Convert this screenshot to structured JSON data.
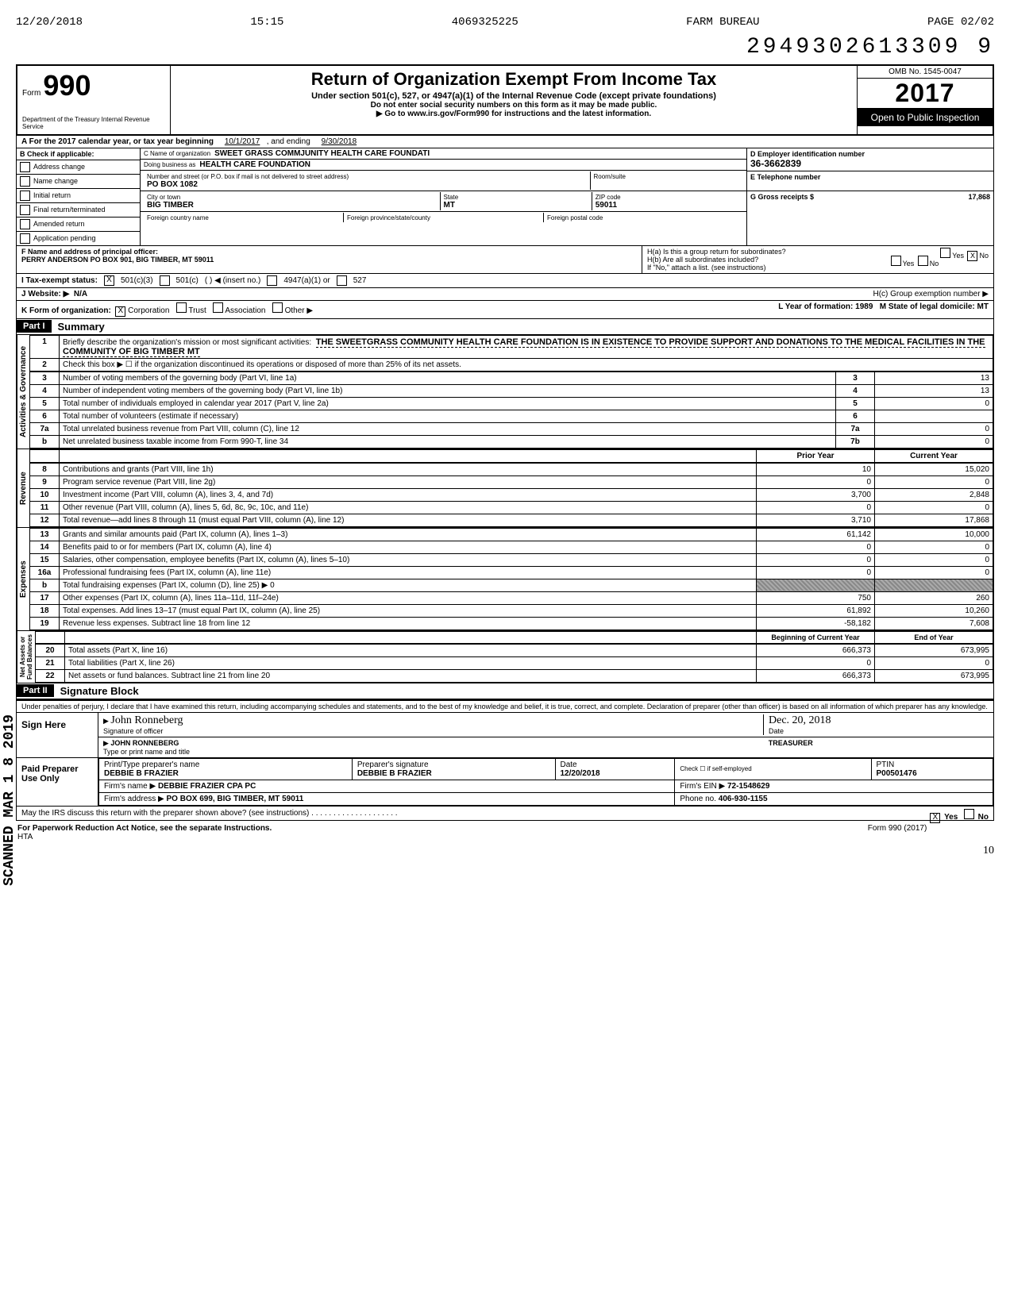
{
  "fax": {
    "date": "12/20/2018",
    "time": "15:15",
    "number": "4069325225",
    "name": "FARM BUREAU",
    "page": "PAGE  02/02"
  },
  "doc_id": "2949302613309  9",
  "header": {
    "form_word": "Form",
    "form_no": "990",
    "title": "Return of Organization Exempt From Income Tax",
    "sub1": "Under section 501(c), 527, or 4947(a)(1) of the Internal Revenue Code (except private foundations)",
    "sub2": "Do not enter social security numbers on this form as it may be made public.",
    "sub3": "▶ Go to www.irs.gov/Form990 for instructions and the latest information.",
    "dept": "Department of the Treasury\nInternal Revenue Service",
    "omb": "OMB No. 1545-0047",
    "year": "2017",
    "open": "Open to Public\nInspection"
  },
  "row_a": {
    "text_l": "A   For the 2017 calendar year, or tax year beginning",
    "begin": "10/1/2017",
    "mid": ", and ending",
    "end": "9/30/2018"
  },
  "checks": {
    "header": "B  Check if applicable:",
    "items": [
      "Address change",
      "Name change",
      "Initial return",
      "Final return/terminated",
      "Amended return",
      "Application pending"
    ]
  },
  "org": {
    "c_lbl": "C  Name of organization",
    "c_val": "SWEET GRASS COMMJUNITY HEALTH CARE FOUNDATI",
    "dba_lbl": "Doing business as",
    "dba_val": "HEALTH CARE FOUNDATION",
    "street_lbl": "Number and street (or P.O. box if mail is not delivered to street address)",
    "street_val": "PO BOX 1082",
    "room_lbl": "Room/suite",
    "city_lbl": "City or town",
    "city_val": "BIG TIMBER",
    "state_lbl": "State",
    "state_val": "MT",
    "zip_lbl": "ZIP code",
    "zip_val": "59011",
    "fc_lbl": "Foreign country name",
    "fp_lbl": "Foreign province/state/county",
    "fz_lbl": "Foreign postal code"
  },
  "right": {
    "d_lbl": "D  Employer identification number",
    "d_val": "36-3662839",
    "e_lbl": "E  Telephone number",
    "g_lbl": "G  Gross receipts $",
    "g_val": "17,868"
  },
  "f": {
    "lbl": "F  Name and address of principal officer:",
    "val": "PERRY ANDERSON PO BOX 901, BIG TIMBER, MT  59011",
    "ha": "H(a) Is this a group return for subordinates?",
    "ha_yes": "Yes",
    "ha_no": "No",
    "ha_checked": "X",
    "hb": "H(b) Are all subordinates included?",
    "hb_yes": "Yes",
    "hb_no": "No",
    "hb_note": "If \"No,\" attach a list. (see instructions)"
  },
  "i": {
    "lbl": "I   Tax-exempt status:",
    "opt1": "501(c)(3)",
    "opt1_checked": "X",
    "opt2": "501(c)",
    "opt2_paren": "(          )  ◀ (insert no.)",
    "opt3": "4947(a)(1) or",
    "opt4": "527"
  },
  "j": {
    "lbl": "J  Website: ▶",
    "val": "N/A",
    "hc": "H(c) Group exemption number ▶"
  },
  "k": {
    "lbl": "K  Form of organization:",
    "corp": "Corporation",
    "corp_checked": "X",
    "trust": "Trust",
    "assoc": "Association",
    "other": "Other ▶",
    "l_lbl": "L Year of formation:",
    "l_val": "1989",
    "m_lbl": "M State of legal domicile:",
    "m_val": "MT"
  },
  "part1": {
    "hdr": "Part I",
    "title": "Summary",
    "line1_lbl": "Briefly describe the organization's mission or most significant activities:",
    "line1_val": "THE SWEETGRASS COMMUNITY HEALTH CARE FOUNDATION IS IN EXISTENCE TO PROVIDE SUPPORT AND DONATIONS TO THE MEDICAL FACILITIES IN THE COMMUNITY OF BIG TIMBER MT",
    "line2": "Check this box  ▶ ☐  if the organization discontinued its operations or disposed of more than 25% of its net assets.",
    "rows_gov": [
      {
        "n": "3",
        "t": "Number of voting members of the governing body (Part VI, line 1a)",
        "b": "3",
        "v": "13"
      },
      {
        "n": "4",
        "t": "Number of independent voting members of the governing body (Part VI, line 1b)",
        "b": "4",
        "v": "13"
      },
      {
        "n": "5",
        "t": "Total number of individuals employed in calendar year 2017 (Part V, line 2a)",
        "b": "5",
        "v": "0"
      },
      {
        "n": "6",
        "t": "Total number of volunteers (estimate if necessary)",
        "b": "6",
        "v": ""
      },
      {
        "n": "7a",
        "t": "Total unrelated business revenue from Part VIII, column (C), line 12",
        "b": "7a",
        "v": "0"
      },
      {
        "n": "b",
        "t": "Net unrelated business taxable income from Form 990-T, line 34",
        "b": "7b",
        "v": "0"
      }
    ],
    "col_prior": "Prior Year",
    "col_curr": "Current Year",
    "rows_rev": [
      {
        "n": "8",
        "t": "Contributions and grants (Part VIII, line 1h)",
        "p": "10",
        "c": "15,020"
      },
      {
        "n": "9",
        "t": "Program service revenue (Part VIII, line 2g)",
        "p": "0",
        "c": "0"
      },
      {
        "n": "10",
        "t": "Investment income (Part VIII, column (A), lines 3, 4, and 7d)",
        "p": "3,700",
        "c": "2,848"
      },
      {
        "n": "11",
        "t": "Other revenue (Part VIII, column (A), lines 5, 6d, 8c, 9c, 10c, and 11e)",
        "p": "0",
        "c": "0"
      },
      {
        "n": "12",
        "t": "Total revenue—add lines 8 through 11 (must equal Part VIII, column (A), line 12)",
        "p": "3,710",
        "c": "17,868"
      }
    ],
    "rows_exp": [
      {
        "n": "13",
        "t": "Grants and similar amounts paid (Part IX, column (A), lines 1–3)",
        "p": "61,142",
        "c": "10,000"
      },
      {
        "n": "14",
        "t": "Benefits paid to or for members (Part IX, column (A), line 4)",
        "p": "0",
        "c": "0"
      },
      {
        "n": "15",
        "t": "Salaries, other compensation, employee benefits (Part IX, column (A), lines 5–10)",
        "p": "0",
        "c": "0"
      },
      {
        "n": "16a",
        "t": "Professional fundraising fees (Part IX, column (A), line 11e)",
        "p": "0",
        "c": "0"
      },
      {
        "n": "b",
        "t": "Total fundraising expenses (Part IX, column (D), line 25)  ▶                  0",
        "p": "SHADE",
        "c": "SHADE"
      },
      {
        "n": "17",
        "t": "Other expenses (Part IX, column (A), lines 11a–11d, 11f–24e)",
        "p": "750",
        "c": "260"
      },
      {
        "n": "18",
        "t": "Total expenses. Add lines 13–17 (must equal Part IX, column (A), line 25)",
        "p": "61,892",
        "c": "10,260"
      },
      {
        "n": "19",
        "t": "Revenue less expenses. Subtract line 18 from line 12",
        "p": "-58,182",
        "c": "7,608"
      }
    ],
    "col_begin": "Beginning of Current Year",
    "col_end": "End of Year",
    "rows_net": [
      {
        "n": "20",
        "t": "Total assets (Part X, line 16)",
        "p": "666,373",
        "c": "673,995"
      },
      {
        "n": "21",
        "t": "Total liabilities (Part X, line 26)",
        "p": "0",
        "c": "0"
      },
      {
        "n": "22",
        "t": "Net assets or fund balances. Subtract line 21 from line 20",
        "p": "666,373",
        "c": "673,995"
      }
    ]
  },
  "part2": {
    "hdr": "Part II",
    "title": "Signature Block",
    "penalty": "Under penalties of perjury, I declare that I have examined this return, including accompanying schedules and statements, and to the best of my knowledge and belief, it is true, correct, and complete. Declaration of preparer (other than officer) is based on all information of which preparer has any knowledge.",
    "sign_here": "Sign Here",
    "sig_lbl": "Signature of officer",
    "sig_hand": "John Ronneberg",
    "date_lbl": "Date",
    "date_hand": "Dec. 20, 2018",
    "name_lbl": "Type or print name and title",
    "name_val": "JOHN RONNEBERG",
    "title_val": "TREASURER",
    "paid": "Paid Preparer Use Only",
    "prep_name_lbl": "Print/Type preparer's name",
    "prep_name": "DEBBIE B FRAZIER",
    "prep_sig_lbl": "Preparer's signature",
    "prep_sig": "DEBBIE B FRAZIER",
    "prep_date_lbl": "Date",
    "prep_date": "12/20/2018",
    "check_lbl": "Check ☐ if self-employed",
    "ptin_lbl": "PTIN",
    "ptin": "P00501476",
    "firm_lbl": "Firm's name   ▶",
    "firm": "DEBBIE FRAZIER CPA PC",
    "ein_lbl": "Firm's EIN ▶",
    "ein": "72-1548629",
    "addr_lbl": "Firm's address ▶",
    "addr": "PO BOX 699, BIG TIMBER, MT 59011",
    "phone_lbl": "Phone no.",
    "phone": "406-930-1155",
    "may_irs": "May the IRS discuss this return with the preparer shown above? (see instructions)",
    "may_yes": "Yes",
    "may_no": "No",
    "may_checked": "X"
  },
  "footer": {
    "left": "For Paperwork Reduction Act Notice, see the separate Instructions.",
    "hta": "HTA",
    "right": "Form 990 (2017)"
  },
  "scanned": "SCANNED MAR 1 8 2019",
  "hand_bottom": "10"
}
